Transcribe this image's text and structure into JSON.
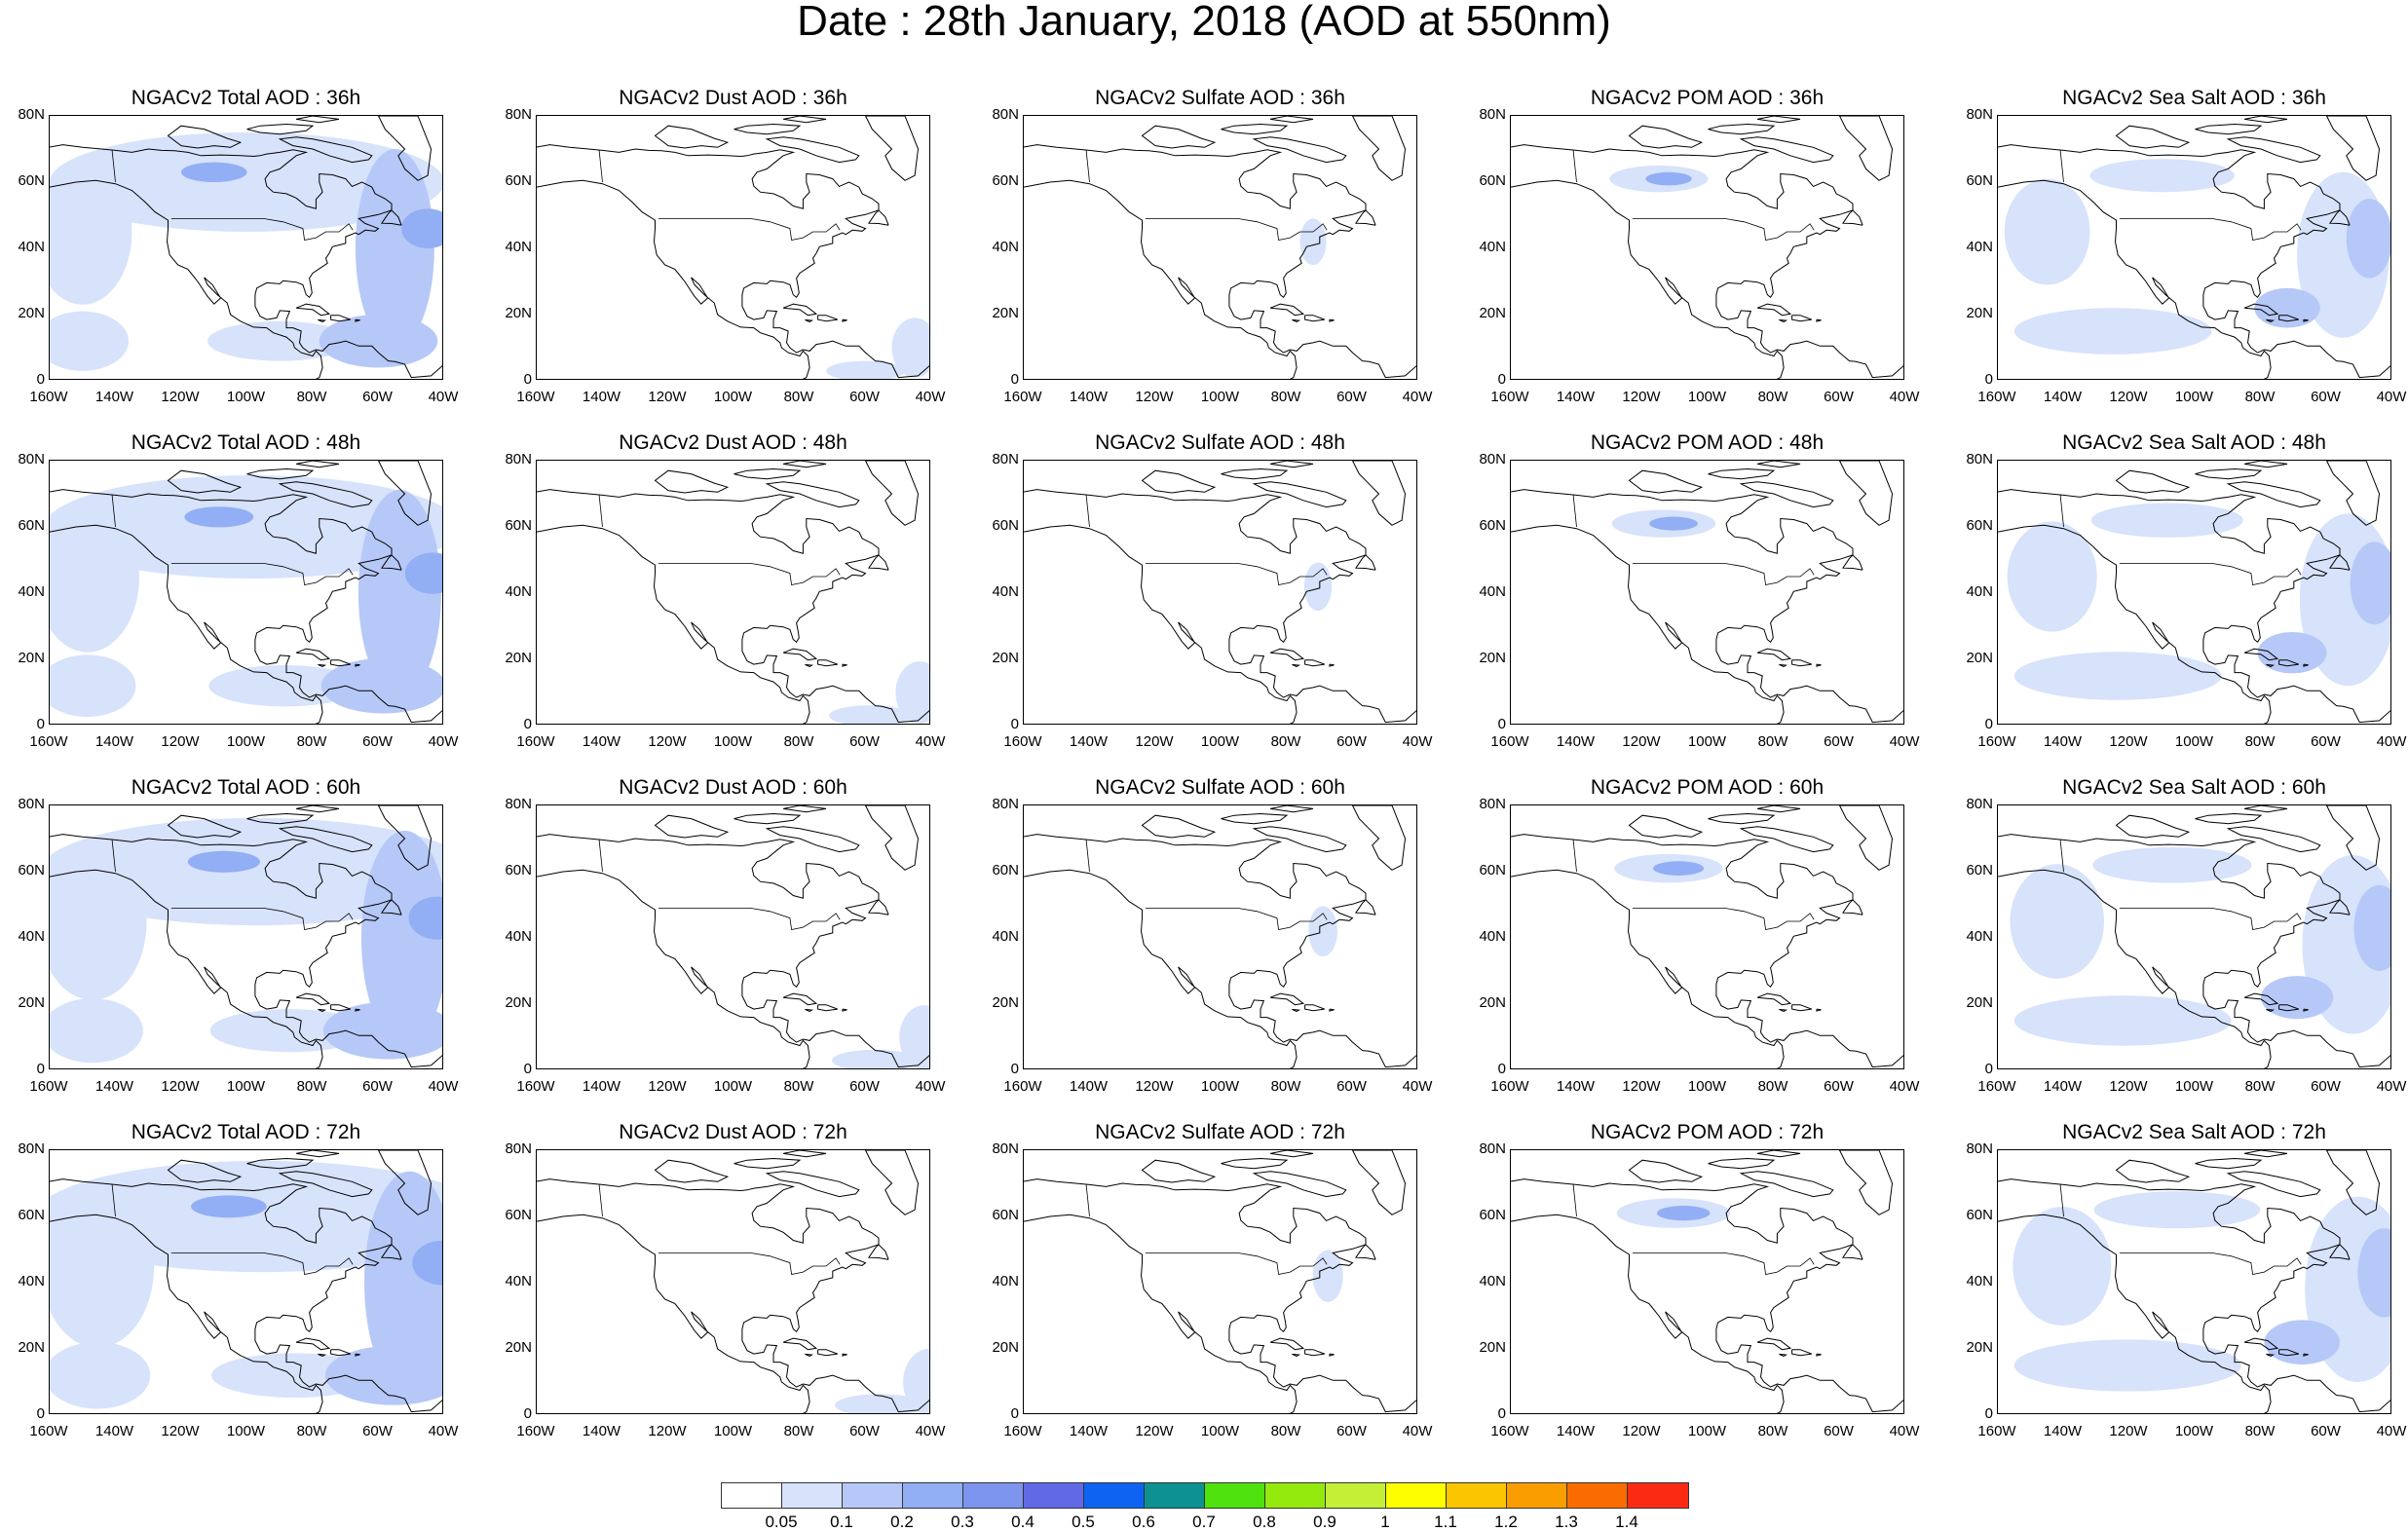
{
  "figure": {
    "title": "Date : 28th January, 2018 (AOD at 550nm)"
  },
  "axes": {
    "y_ticks": [
      "80N",
      "60N",
      "40N",
      "20N",
      "0"
    ],
    "x_ticks": [
      "160W",
      "140W",
      "120W",
      "100W",
      "80W",
      "60W",
      "40W"
    ],
    "lon_range": [
      -160,
      -40
    ],
    "lat_range": [
      0,
      80
    ]
  },
  "colorbar": {
    "colors": [
      "#ffffff",
      "#d7e2fb",
      "#b6c8f7",
      "#92aef4",
      "#7d95ee",
      "#6169e6",
      "#0f63f2",
      "#0e9191",
      "#4fe20e",
      "#94ea0d",
      "#c5ef36",
      "#fefe00",
      "#fbc600",
      "#fa9d00",
      "#fa6c00",
      "#fb2b13"
    ],
    "labels": [
      "0.05",
      "0.1",
      "0.2",
      "0.3",
      "0.4",
      "0.5",
      "0.6",
      "0.7",
      "0.8",
      "0.9",
      "1",
      "1.1",
      "1.2",
      "1.3",
      "1.4"
    ]
  },
  "panels": [
    {
      "title": "NGACv2 Total AOD : 36h",
      "species": "total",
      "hour": 36
    },
    {
      "title": "NGACv2 Dust AOD : 36h",
      "species": "dust",
      "hour": 36
    },
    {
      "title": "NGACv2 Sulfate AOD : 36h",
      "species": "sulfate",
      "hour": 36
    },
    {
      "title": "NGACv2 POM AOD : 36h",
      "species": "pom",
      "hour": 36
    },
    {
      "title": "NGACv2 Sea Salt AOD : 36h",
      "species": "seasalt",
      "hour": 36
    },
    {
      "title": "NGACv2 Total AOD : 48h",
      "species": "total",
      "hour": 48
    },
    {
      "title": "NGACv2 Dust AOD : 48h",
      "species": "dust",
      "hour": 48
    },
    {
      "title": "NGACv2 Sulfate AOD : 48h",
      "species": "sulfate",
      "hour": 48
    },
    {
      "title": "NGACv2 POM AOD : 48h",
      "species": "pom",
      "hour": 48
    },
    {
      "title": "NGACv2 Sea Salt AOD : 48h",
      "species": "seasalt",
      "hour": 48
    },
    {
      "title": "NGACv2 Total AOD : 60h",
      "species": "total",
      "hour": 60
    },
    {
      "title": "NGACv2 Dust AOD : 60h",
      "species": "dust",
      "hour": 60
    },
    {
      "title": "NGACv2 Sulfate AOD : 60h",
      "species": "sulfate",
      "hour": 60
    },
    {
      "title": "NGACv2 POM AOD : 60h",
      "species": "pom",
      "hour": 60
    },
    {
      "title": "NGACv2 Sea Salt AOD : 60h",
      "species": "seasalt",
      "hour": 60
    },
    {
      "title": "NGACv2 Total AOD : 72h",
      "species": "total",
      "hour": 72
    },
    {
      "title": "NGACv2 Dust AOD : 72h",
      "species": "dust",
      "hour": 72
    },
    {
      "title": "NGACv2 Sulfate AOD : 72h",
      "species": "sulfate",
      "hour": 72
    },
    {
      "title": "NGACv2 POM AOD : 72h",
      "species": "pom",
      "hour": 72
    },
    {
      "title": "NGACv2 Sea Salt  AOD : 72h",
      "species": "seasalt",
      "hour": 72
    }
  ]
}
